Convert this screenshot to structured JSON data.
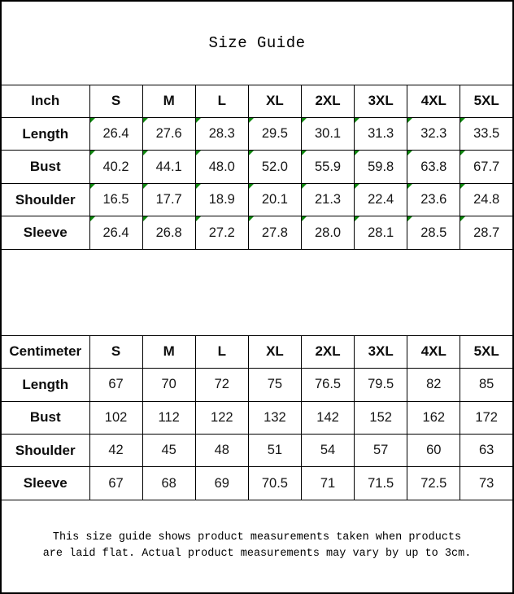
{
  "title": "Size Guide",
  "size_columns": [
    "S",
    "M",
    "L",
    "XL",
    "2XL",
    "3XL",
    "4XL",
    "5XL"
  ],
  "tables": [
    {
      "unit_label": "Inch",
      "has_flags": true,
      "rows": [
        {
          "label": "Length",
          "values": [
            "26.4",
            "27.6",
            "28.3",
            "29.5",
            "30.1",
            "31.3",
            "32.3",
            "33.5"
          ]
        },
        {
          "label": "Bust",
          "values": [
            "40.2",
            "44.1",
            "48.0",
            "52.0",
            "55.9",
            "59.8",
            "63.8",
            "67.7"
          ]
        },
        {
          "label": "Shoulder",
          "values": [
            "16.5",
            "17.7",
            "18.9",
            "20.1",
            "21.3",
            "22.4",
            "23.6",
            "24.8"
          ]
        },
        {
          "label": "Sleeve",
          "values": [
            "26.4",
            "26.8",
            "27.2",
            "27.8",
            "28.0",
            "28.1",
            "28.5",
            "28.7"
          ]
        }
      ]
    },
    {
      "unit_label": "Centimeter",
      "has_flags": false,
      "rows": [
        {
          "label": "Length",
          "values": [
            "67",
            "70",
            "72",
            "75",
            "76.5",
            "79.5",
            "82",
            "85"
          ]
        },
        {
          "label": "Bust",
          "values": [
            "102",
            "112",
            "122",
            "132",
            "142",
            "152",
            "162",
            "172"
          ]
        },
        {
          "label": "Shoulder",
          "values": [
            "42",
            "45",
            "48",
            "51",
            "54",
            "57",
            "60",
            "63"
          ]
        },
        {
          "label": "Sleeve",
          "values": [
            "67",
            "68",
            "69",
            "70.5",
            "71",
            "71.5",
            "72.5",
            "73"
          ]
        }
      ]
    }
  ],
  "footer": {
    "line1": "This size guide shows product measurements taken when products",
    "line2": "are laid flat. Actual product measurements may vary by up to 3cm."
  },
  "colors": {
    "flag": "#0e870e",
    "border": "#000000",
    "text": "#161616",
    "background": "#ffffff"
  }
}
